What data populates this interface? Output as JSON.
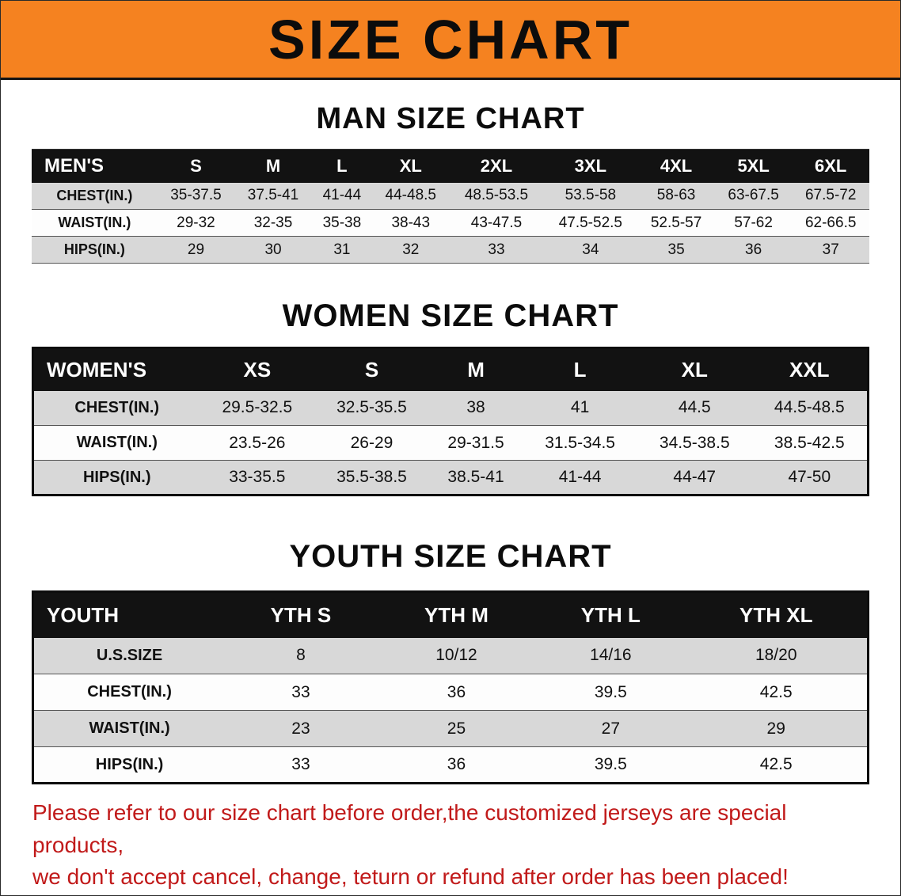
{
  "banner": {
    "title": "SIZE CHART"
  },
  "colors": {
    "banner_bg": "#F58220",
    "table_header_bg": "#121212",
    "table_header_text": "#ffffff",
    "row_shaded": "#d8d8d8",
    "row_plain": "#fdfdfd",
    "note_text": "#c11a1a"
  },
  "men": {
    "heading": "MAN SIZE CHART",
    "label": "MEN'S",
    "cols": [
      "S",
      "M",
      "L",
      "XL",
      "2XL",
      "3XL",
      "4XL",
      "5XL",
      "6XL"
    ],
    "rows": [
      {
        "label": "CHEST(IN.)",
        "values": [
          "35-37.5",
          "37.5-41",
          "41-44",
          "44-48.5",
          "48.5-53.5",
          "53.5-58",
          "58-63",
          "63-67.5",
          "67.5-72"
        ]
      },
      {
        "label": "WAIST(IN.)",
        "values": [
          "29-32",
          "32-35",
          "35-38",
          "38-43",
          "43-47.5",
          "47.5-52.5",
          "52.5-57",
          "57-62",
          "62-66.5"
        ]
      },
      {
        "label": "HIPS(IN.)",
        "values": [
          "29",
          "30",
          "31",
          "32",
          "33",
          "34",
          "35",
          "36",
          "37"
        ]
      }
    ]
  },
  "women": {
    "heading": "WOMEN SIZE CHART",
    "label": "WOMEN'S",
    "cols": [
      "XS",
      "S",
      "M",
      "L",
      "XL",
      "XXL"
    ],
    "rows": [
      {
        "label": "CHEST(IN.)",
        "values": [
          "29.5-32.5",
          "32.5-35.5",
          "38",
          "41",
          "44.5",
          "44.5-48.5"
        ]
      },
      {
        "label": "WAIST(IN.)",
        "values": [
          "23.5-26",
          "26-29",
          "29-31.5",
          "31.5-34.5",
          "34.5-38.5",
          "38.5-42.5"
        ]
      },
      {
        "label": "HIPS(IN.)",
        "values": [
          "33-35.5",
          "35.5-38.5",
          "38.5-41",
          "41-44",
          "44-47",
          "47-50"
        ]
      }
    ]
  },
  "youth": {
    "heading": "YOUTH SIZE CHART",
    "label": "YOUTH",
    "cols": [
      "YTH S",
      "YTH M",
      "YTH L",
      "YTH XL"
    ],
    "rows": [
      {
        "label": "U.S.SIZE",
        "values": [
          "8",
          "10/12",
          "14/16",
          "18/20"
        ]
      },
      {
        "label": "CHEST(IN.)",
        "values": [
          "33",
          "36",
          "39.5",
          "42.5"
        ]
      },
      {
        "label": "WAIST(IN.)",
        "values": [
          "23",
          "25",
          "27",
          "29"
        ]
      },
      {
        "label": "HIPS(IN.)",
        "values": [
          "33",
          "36",
          "39.5",
          "42.5"
        ]
      }
    ]
  },
  "footer": {
    "line1": "Please refer to our size chart before order,the customized jerseys are special products,",
    "line2": "we don't accept cancel, change, teturn or refund after order has been placed!"
  }
}
